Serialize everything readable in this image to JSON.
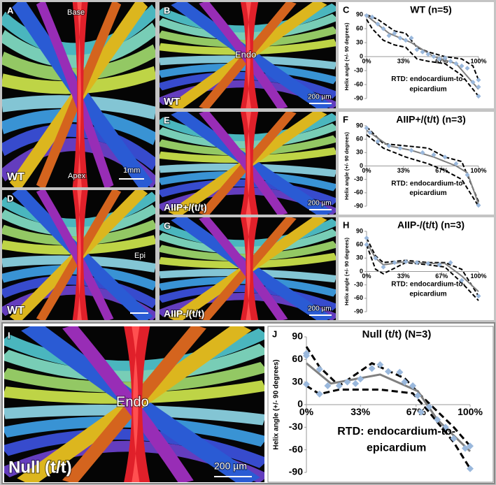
{
  "figure": {
    "panels": [
      {
        "letter": "A",
        "labels": [
          "Base",
          "Apex",
          "WT",
          "1mm"
        ]
      },
      {
        "letter": "B",
        "labels": [
          "Endo",
          "WT",
          "200 µm"
        ]
      },
      {
        "letter": "D",
        "labels": [
          "Epi",
          "WT"
        ]
      },
      {
        "letter": "E",
        "labels": [
          "AIIP+/(t/t)",
          "200 µm"
        ]
      },
      {
        "letter": "G",
        "labels": [
          "AIIP-/(t/t)",
          "200 µm"
        ]
      },
      {
        "letter": "I",
        "labels": [
          "Endo",
          "Null (t/t)",
          "200 µm"
        ]
      }
    ]
  },
  "chart_data": [
    {
      "type": "line",
      "panel": "C",
      "title": "WT (n=5)",
      "y_label": "Helix angle (+/- 90 degrees)",
      "annotation": [
        "RTD: endocardium-to-",
        "epicardium"
      ],
      "xlim": [
        0,
        100
      ],
      "xticks": [
        {
          "value": 0,
          "label": "0%"
        },
        {
          "value": 33,
          "label": "33%"
        },
        {
          "value": 67,
          "label": "67%"
        },
        {
          "value": 100,
          "label": "100%"
        }
      ],
      "ylim": [
        -90,
        90
      ],
      "yticks": [
        90,
        60,
        30,
        0,
        -30,
        -60,
        -90
      ],
      "series": [
        {
          "color": "#000000",
          "line_style": "dashed",
          "x": [
            0,
            10,
            25,
            35,
            45,
            55,
            70,
            85,
            95,
            100
          ],
          "values": [
            90,
            80,
            55,
            50,
            20,
            10,
            0,
            -5,
            -20,
            -50
          ]
        },
        {
          "color": "#000000",
          "line_style": "dashed",
          "x": [
            0,
            5,
            15,
            25,
            35,
            45,
            55,
            70,
            85,
            95,
            100
          ],
          "values": [
            80,
            60,
            35,
            25,
            20,
            -5,
            -10,
            -15,
            -40,
            -70,
            -85
          ]
        },
        {
          "color": "#808080",
          "line_style": "solid",
          "x": [
            0,
            20,
            40,
            60,
            80,
            100
          ],
          "values": [
            88,
            50,
            30,
            0,
            -15,
            -70
          ]
        },
        {
          "color": "#9ab8dc",
          "line_style": "none",
          "marker": "diamond",
          "x": [
            0,
            5,
            10,
            15,
            20,
            25,
            30,
            35,
            40,
            45,
            50,
            55,
            60,
            65,
            70,
            75,
            80,
            85,
            90,
            95,
            100,
            100,
            100
          ],
          "values": [
            88,
            85,
            70,
            60,
            45,
            50,
            40,
            35,
            40,
            15,
            10,
            5,
            0,
            -5,
            -3,
            -10,
            -15,
            -20,
            -25,
            -55,
            -65,
            -85,
            -50
          ]
        }
      ]
    },
    {
      "type": "line",
      "panel": "F",
      "title": "AIIP+/(t/t) (n=3)",
      "y_label": "Helix angle (+/- 90 degrees)",
      "annotation": [
        "RTD: endocardium-to-",
        "epicardium"
      ],
      "xlim": [
        0,
        100
      ],
      "xticks": [
        {
          "value": 0,
          "label": "0%"
        },
        {
          "value": 33,
          "label": "33%"
        },
        {
          "value": 67,
          "label": "67%"
        },
        {
          "value": 100,
          "label": "100%"
        }
      ],
      "ylim": [
        -90,
        90
      ],
      "yticks": [
        90,
        60,
        30,
        0,
        -30,
        -60,
        -90
      ],
      "series": [
        {
          "color": "#000000",
          "line_style": "dashed",
          "x": [
            0,
            15,
            35,
            55,
            70,
            85,
            100
          ],
          "values": [
            88,
            50,
            45,
            40,
            20,
            10,
            -80
          ]
        },
        {
          "color": "#000000",
          "line_style": "dashed",
          "x": [
            0,
            15,
            35,
            55,
            70,
            85,
            100
          ],
          "values": [
            70,
            40,
            20,
            5,
            -10,
            -30,
            -90
          ]
        },
        {
          "color": "#808080",
          "line_style": "solid",
          "x": [
            0,
            20,
            40,
            60,
            80,
            90,
            100
          ],
          "values": [
            80,
            45,
            35,
            20,
            0,
            -15,
            -85
          ]
        },
        {
          "color": "#9ab8dc",
          "line_style": "none",
          "marker": "diamond",
          "x": [
            0,
            3,
            10,
            20,
            30,
            40,
            50,
            60,
            70,
            80,
            90,
            100
          ],
          "values": [
            85,
            75,
            55,
            45,
            40,
            35,
            30,
            25,
            20,
            5,
            -20,
            -88
          ]
        }
      ]
    },
    {
      "type": "line",
      "panel": "H",
      "title": "AIIP-/(t/t) (n=3)",
      "y_label": "Helix angle (+/- 90 degrees)",
      "annotation": [
        "RTD: endocardium-to-",
        "epicardium"
      ],
      "xlim": [
        0,
        100
      ],
      "xticks": [
        {
          "value": 0,
          "label": "0%"
        },
        {
          "value": 33,
          "label": "33%"
        },
        {
          "value": 67,
          "label": "67%"
        },
        {
          "value": 100,
          "label": "100%"
        }
      ],
      "ylim": [
        -90,
        90
      ],
      "yticks": [
        90,
        60,
        30,
        0,
        -30,
        -60,
        -90
      ],
      "series": [
        {
          "color": "#000000",
          "line_style": "dashed",
          "x": [
            0,
            8,
            15,
            35,
            55,
            70,
            85,
            100
          ],
          "values": [
            75,
            35,
            20,
            25,
            20,
            20,
            5,
            -55
          ]
        },
        {
          "color": "#000000",
          "line_style": "dashed",
          "x": [
            0,
            8,
            15,
            35,
            55,
            70,
            85,
            100
          ],
          "values": [
            60,
            5,
            -5,
            20,
            15,
            10,
            -25,
            -65
          ]
        },
        {
          "color": "#808080",
          "line_style": "solid",
          "x": [
            0,
            8,
            15,
            35,
            55,
            70,
            85,
            100
          ],
          "values": [
            65,
            30,
            15,
            22,
            18,
            18,
            -10,
            -45
          ]
        },
        {
          "color": "#9ab8dc",
          "line_style": "none",
          "marker": "diamond",
          "x": [
            0,
            0,
            8,
            15,
            25,
            35,
            45,
            55,
            65,
            75,
            85,
            100
          ],
          "values": [
            75,
            60,
            30,
            10,
            20,
            22,
            20,
            18,
            15,
            20,
            -20,
            -55
          ]
        }
      ]
    },
    {
      "type": "line",
      "panel": "J",
      "title": "Null (t/t) (N=3)",
      "y_label": "Helix angle (+/- 90 degrees)",
      "annotation": [
        "RTD: endocardium-to-",
        "epicardium"
      ],
      "xlim": [
        0,
        100
      ],
      "xticks": [
        {
          "value": 0,
          "label": "0%"
        },
        {
          "value": 33,
          "label": "33%"
        },
        {
          "value": 67,
          "label": "67%"
        },
        {
          "value": 100,
          "label": "100%"
        }
      ],
      "ylim": [
        -90,
        90
      ],
      "yticks": [
        90,
        60,
        30,
        0,
        -30,
        -60,
        -90
      ],
      "series": [
        {
          "color": "#000000",
          "line_style": "dashed",
          "x": [
            0,
            8,
            20,
            40,
            60,
            70,
            90,
            100
          ],
          "values": [
            77,
            50,
            25,
            55,
            35,
            12,
            -30,
            -55
          ]
        },
        {
          "color": "#000000",
          "line_style": "dashed",
          "x": [
            0,
            8,
            20,
            45,
            65,
            75,
            90,
            100
          ],
          "values": [
            25,
            14,
            20,
            20,
            15,
            -10,
            -50,
            -85
          ]
        },
        {
          "color": "#808080",
          "line_style": "solid",
          "x": [
            0,
            15,
            45,
            68,
            80,
            100
          ],
          "values": [
            55,
            28,
            40,
            18,
            -20,
            -62
          ]
        },
        {
          "color": "#9ab8dc",
          "line_style": "none",
          "marker": "diamond",
          "x": [
            0,
            0,
            0,
            8,
            8,
            13,
            20,
            25,
            30,
            33,
            40,
            45,
            50,
            57,
            60,
            65,
            68,
            70,
            75,
            80,
            85,
            90,
            97,
            100,
            100
          ],
          "values": [
            65,
            68,
            27,
            47,
            14,
            25,
            25,
            30,
            28,
            34,
            48,
            53,
            44,
            43,
            30,
            25,
            12,
            -10,
            -3,
            -20,
            -30,
            -45,
            -58,
            -55,
            -85
          ]
        }
      ]
    }
  ]
}
